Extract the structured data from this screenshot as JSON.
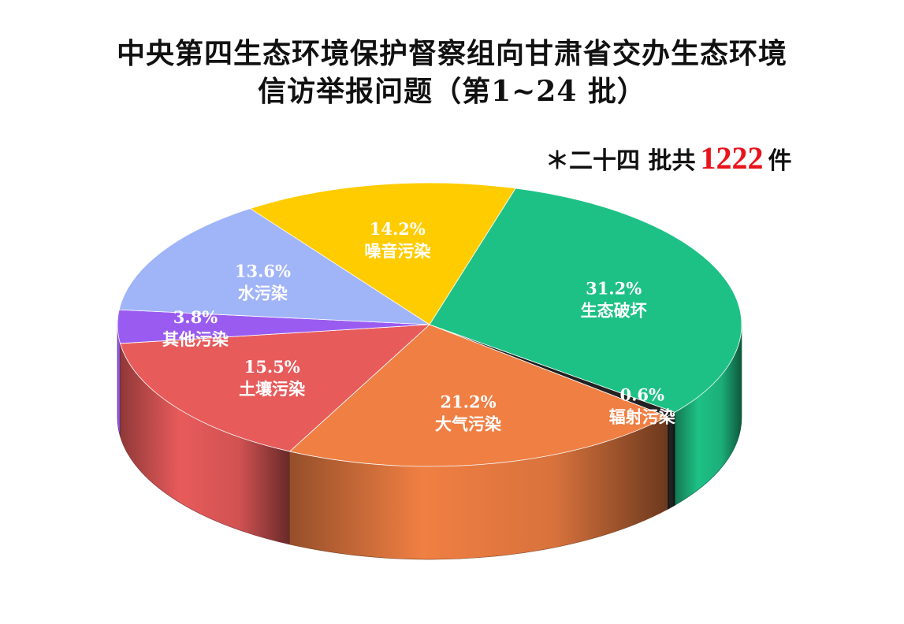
{
  "title": {
    "line1": "中央第四生态环境保护督察组向甘肃省交办生态环境",
    "line2": "信访举报问题（第1~24 批）"
  },
  "summary": {
    "prefix": "＊二十四 批共",
    "count": "1222",
    "suffix": "件"
  },
  "chart_data": {
    "type": "pie",
    "style": "3d-exploded-perspective",
    "total": 1222,
    "slices": [
      {
        "name": "生态破坏",
        "value": 31.2,
        "label": "31.2%",
        "color": "#1ec185"
      },
      {
        "name": "辐射污染",
        "value": 0.6,
        "label": "0.6%",
        "color": "#222222"
      },
      {
        "name": "大气污染",
        "value": 21.2,
        "label": "21.2%",
        "color": "#f07f43"
      },
      {
        "name": "土壤污染",
        "value": 15.5,
        "label": "15.5%",
        "color": "#e85b5b"
      },
      {
        "name": "其他污染",
        "value": 3.8,
        "label": "3.8%",
        "color": "#9a5cf0"
      },
      {
        "name": "水污染",
        "value": 13.6,
        "label": "13.6%",
        "color": "#a0b4f8"
      },
      {
        "name": "噪音污染",
        "value": 14.2,
        "label": "14.2%",
        "color": "#ffcc00"
      }
    ]
  }
}
